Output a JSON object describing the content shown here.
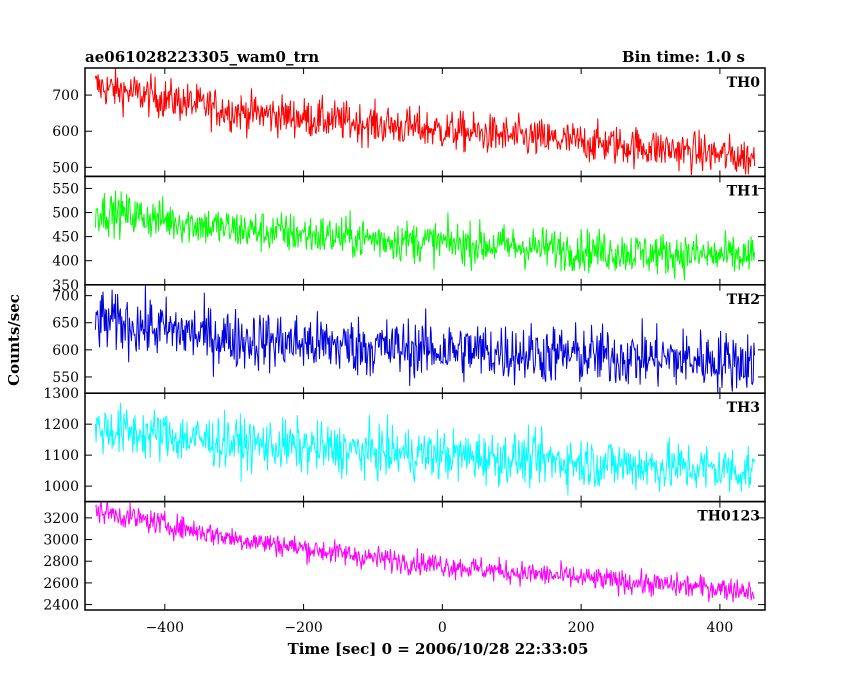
{
  "chart_data": {
    "type": "line",
    "title": "ae061028223305_wam0_trn",
    "bin_time": "Bin time: 1.0 s",
    "xlabel": "Time [sec] 0 = 2006/10/28 22:33:05",
    "ylabel": "Counts/sec",
    "xlim": [
      -515,
      465
    ],
    "x_range": [
      -500,
      450
    ],
    "xticks": [
      -400,
      -200,
      0,
      200,
      400
    ],
    "xtick_labels": [
      "−400",
      "−200",
      "0",
      "200",
      "400"
    ],
    "grid": false,
    "legend": "none",
    "panels": [
      {
        "name": "TH0",
        "color": "#ff0000",
        "ylim": [
          475,
          775
        ],
        "yticks": [
          500,
          600,
          700
        ],
        "ytick_labels": [
          "500",
          "600",
          "700"
        ],
        "trend": [
          [
            -500,
            725
          ],
          [
            -300,
            655
          ],
          [
            -100,
            620
          ],
          [
            100,
            585
          ],
          [
            300,
            555
          ],
          [
            450,
            525
          ]
        ],
        "noise": 28
      },
      {
        "name": "TH1",
        "color": "#00ff00",
        "ylim": [
          350,
          575
        ],
        "yticks": [
          350,
          400,
          450,
          500,
          550
        ],
        "ytick_labels": [
          "350",
          "400",
          "450",
          "500",
          "550"
        ],
        "trend": [
          [
            -500,
            505
          ],
          [
            -300,
            465
          ],
          [
            -100,
            445
          ],
          [
            100,
            430
          ],
          [
            300,
            415
          ],
          [
            450,
            408
          ]
        ],
        "noise": 22
      },
      {
        "name": "TH2",
        "color": "#0000dd",
        "ylim": [
          520,
          720
        ],
        "yticks": [
          550,
          600,
          650,
          700
        ],
        "ytick_labels": [
          "550",
          "600",
          "650",
          "700"
        ],
        "trend": [
          [
            -500,
            655
          ],
          [
            -300,
            620
          ],
          [
            -100,
            605
          ],
          [
            100,
            595
          ],
          [
            300,
            585
          ],
          [
            450,
            578
          ]
        ],
        "noise": 28
      },
      {
        "name": "TH3",
        "color": "#00ffff",
        "ylim": [
          950,
          1300
        ],
        "yticks": [
          1000,
          1100,
          1200,
          1300
        ],
        "ytick_labels": [
          "1000",
          "1100",
          "1200",
          "1300"
        ],
        "trend": [
          [
            -500,
            1185
          ],
          [
            -300,
            1140
          ],
          [
            -100,
            1110
          ],
          [
            100,
            1090
          ],
          [
            300,
            1065
          ],
          [
            450,
            1050
          ]
        ],
        "noise": 42
      },
      {
        "name": "TH0123",
        "color": "#ff00ff",
        "ylim": [
          2350,
          3350
        ],
        "yticks": [
          2400,
          2600,
          2800,
          3000,
          3200
        ],
        "ytick_labels": [
          "2400",
          "2600",
          "2800",
          "3000",
          "3200"
        ],
        "trend": [
          [
            -500,
            3270
          ],
          [
            -300,
            3010
          ],
          [
            -100,
            2830
          ],
          [
            100,
            2700
          ],
          [
            300,
            2590
          ],
          [
            450,
            2530
          ]
        ],
        "noise": 55
      }
    ]
  }
}
